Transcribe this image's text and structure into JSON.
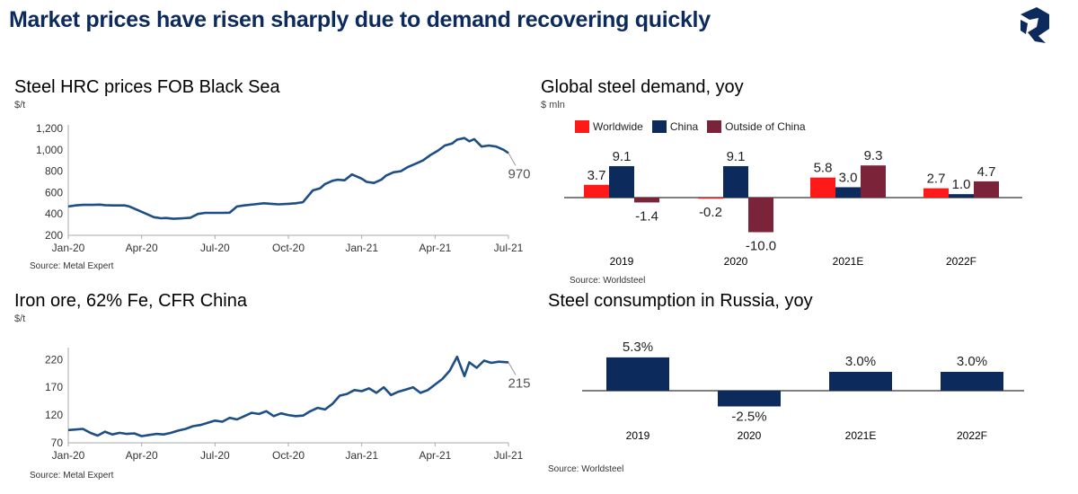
{
  "header": {
    "title": "Market prices have risen sharply due to demand recovering quickly"
  },
  "colors": {
    "navy": "#0c2a5c",
    "line": "#1d4f86",
    "red": "#ff1a1a",
    "maroon": "#7a2339",
    "grid": "#999999"
  },
  "panels": {
    "steel_hrc": {
      "title": "Steel HRC prices FOB Black Sea",
      "unit": "$/t",
      "source": "Source: Metal Expert"
    },
    "steel_demand": {
      "title": "Global steel demand, yoy",
      "unit": "$ mln",
      "source": "Source: Worldsteel"
    },
    "iron_ore": {
      "title": "Iron ore, 62% Fe, CFR China",
      "unit": "$/t",
      "source": "Source: Metal Expert"
    },
    "russia": {
      "title": "Steel consumption in Russia, yoy",
      "source": "Source: Worldsteel"
    }
  },
  "chart_data": [
    {
      "id": "steel_hrc",
      "type": "line",
      "title": "Steel HRC prices FOB Black Sea",
      "ylabel": "$/t",
      "ylim": [
        200,
        1200
      ],
      "yticks": [
        200,
        400,
        600,
        800,
        1000,
        1200
      ],
      "ytick_labels": [
        "200",
        "400",
        "600",
        "800",
        "1,000",
        "1,200"
      ],
      "xlim": [
        0,
        18
      ],
      "xticks": [
        0,
        3,
        6,
        9,
        12,
        15,
        18
      ],
      "xtick_labels": [
        "Jan-20",
        "Apr-20",
        "Jul-20",
        "Oct-20",
        "Jan-21",
        "Apr-21",
        "Jul-21"
      ],
      "end_label": "970",
      "series": [
        {
          "name": "HRC",
          "x": [
            0,
            0.3,
            0.6,
            1.0,
            1.3,
            1.5,
            1.8,
            2.3,
            2.5,
            2.8,
            3.2,
            3.5,
            3.8,
            4.0,
            4.3,
            4.7,
            5.0,
            5.3,
            5.6,
            6.0,
            6.3,
            6.6,
            6.9,
            7.2,
            7.6,
            8.0,
            8.3,
            8.6,
            9.0,
            9.3,
            9.6,
            10.0,
            10.3,
            10.5,
            10.8,
            11.0,
            11.3,
            11.6,
            12.0,
            12.2,
            12.5,
            12.8,
            13.0,
            13.3,
            13.6,
            13.9,
            14.2,
            14.5,
            14.8,
            15.1,
            15.4,
            15.7,
            15.9,
            16.2,
            16.4,
            16.6,
            16.9,
            17.2,
            17.5,
            17.8,
            18.0
          ],
          "values": [
            470,
            480,
            485,
            485,
            487,
            482,
            480,
            480,
            470,
            440,
            400,
            370,
            360,
            362,
            355,
            360,
            365,
            400,
            410,
            410,
            410,
            412,
            470,
            480,
            490,
            500,
            495,
            490,
            495,
            500,
            510,
            620,
            640,
            680,
            710,
            720,
            715,
            770,
            730,
            700,
            690,
            720,
            760,
            790,
            800,
            840,
            870,
            900,
            950,
            990,
            1040,
            1060,
            1095,
            1110,
            1080,
            1100,
            1030,
            1040,
            1030,
            1000,
            970
          ]
        }
      ]
    },
    {
      "id": "steel_demand",
      "type": "bar",
      "title": "Global steel demand, yoy",
      "ylabel": "$ mln",
      "ylim": [
        -10,
        9.3
      ],
      "categories": [
        "2019",
        "2020",
        "2021E",
        "2022F"
      ],
      "series": [
        {
          "name": "Worldwide",
          "values": [
            3.7,
            -0.2,
            5.8,
            2.7
          ],
          "labels": [
            "3.7",
            "-0.2",
            "5.8",
            "2.7"
          ]
        },
        {
          "name": "China",
          "values": [
            9.1,
            9.1,
            3.0,
            1.0
          ],
          "labels": [
            "9.1",
            "9.1",
            "3.0",
            "1.0"
          ]
        },
        {
          "name": "Outside of China",
          "values": [
            -1.4,
            -10.0,
            9.3,
            4.7
          ],
          "labels": [
            "-1.4",
            "-10.0",
            "9.3",
            "4.7"
          ]
        }
      ]
    },
    {
      "id": "iron_ore",
      "type": "line",
      "title": "Iron ore, 62% Fe, CFR China",
      "ylabel": "$/t",
      "ylim": [
        70,
        235
      ],
      "yticks": [
        70,
        120,
        170,
        220
      ],
      "ytick_labels": [
        "70",
        "120",
        "170",
        "220"
      ],
      "xlim": [
        0,
        18
      ],
      "xticks": [
        0,
        3,
        6,
        9,
        12,
        15,
        18
      ],
      "xtick_labels": [
        "Jan-20",
        "Apr-20",
        "Jul-20",
        "Oct-20",
        "Jan-21",
        "Apr-21",
        "Jul-21"
      ],
      "end_label": "215",
      "series": [
        {
          "name": "Iron ore",
          "x": [
            0,
            0.3,
            0.6,
            0.9,
            1.2,
            1.5,
            1.8,
            2.1,
            2.4,
            2.7,
            3.0,
            3.3,
            3.6,
            3.9,
            4.2,
            4.5,
            4.8,
            5.1,
            5.4,
            5.7,
            6.0,
            6.3,
            6.6,
            6.9,
            7.2,
            7.5,
            7.8,
            8.1,
            8.4,
            8.7,
            9.0,
            9.3,
            9.6,
            9.9,
            10.2,
            10.5,
            10.8,
            11.1,
            11.4,
            11.7,
            12.0,
            12.3,
            12.6,
            12.9,
            13.2,
            13.5,
            13.8,
            14.1,
            14.4,
            14.7,
            15.0,
            15.3,
            15.6,
            15.9,
            16.2,
            16.4,
            16.7,
            17.0,
            17.3,
            17.6,
            18.0
          ],
          "values": [
            93,
            94,
            95,
            88,
            83,
            90,
            85,
            88,
            86,
            87,
            82,
            84,
            86,
            85,
            88,
            92,
            95,
            100,
            102,
            106,
            110,
            108,
            115,
            112,
            118,
            124,
            122,
            127,
            118,
            123,
            120,
            118,
            119,
            127,
            133,
            130,
            140,
            155,
            158,
            165,
            163,
            168,
            160,
            170,
            156,
            162,
            166,
            170,
            160,
            165,
            175,
            185,
            200,
            225,
            190,
            215,
            205,
            218,
            214,
            216,
            215
          ]
        }
      ]
    },
    {
      "id": "russia",
      "type": "bar",
      "title": "Steel consumption in Russia, yoy",
      "categories": [
        "2019",
        "2020",
        "2021E",
        "2022F"
      ],
      "ylim": [
        -2.5,
        5.3
      ],
      "series": [
        {
          "name": "Russia",
          "values": [
            5.3,
            -2.5,
            3.0,
            3.0
          ],
          "labels": [
            "5.3%",
            "-2.5%",
            "3.0%",
            "3.0%"
          ]
        }
      ]
    }
  ]
}
